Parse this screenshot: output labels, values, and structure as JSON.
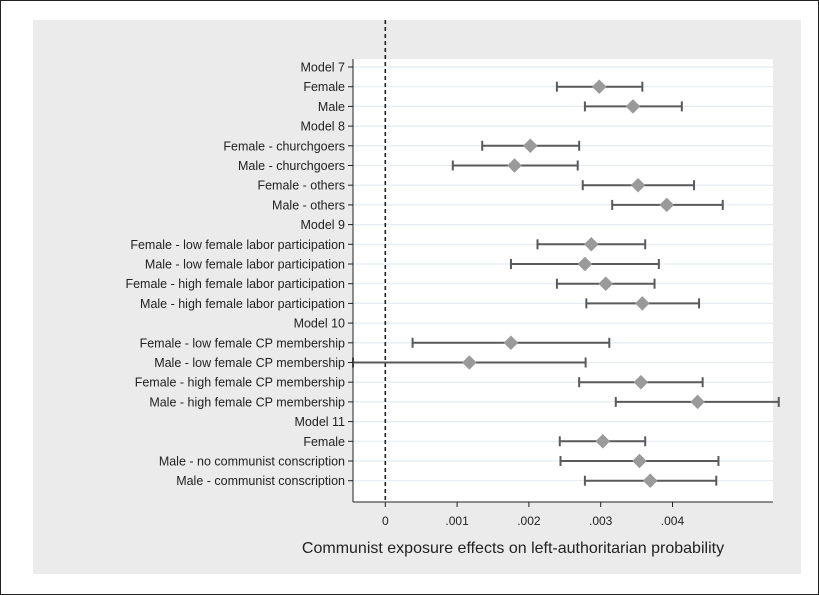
{
  "chart_data": {
    "type": "scatter",
    "subtype": "coefficient-plot-with-confidence-intervals",
    "xlabel": "Communist exposure effects on left-authoritarian probability",
    "xlim": [
      -0.00045,
      0.0054
    ],
    "xticks": [
      {
        "value": 0,
        "label": "0"
      },
      {
        "value": 0.001,
        "label": ".001"
      },
      {
        "value": 0.002,
        "label": ".002"
      },
      {
        "value": 0.003,
        "label": ".003"
      },
      {
        "value": 0.004,
        "label": ".004"
      }
    ],
    "reference_line": {
      "value": 0,
      "style": "dashed"
    },
    "grid": "horizontal",
    "colors": {
      "panel_background": "#ebebeb",
      "plot_background": "#ffffff",
      "marker": "#9a9a9a",
      "ci_line": "#5a5a5a",
      "gridline": "#e4ecf2"
    },
    "rows": [
      {
        "label": "Model 7",
        "header": true
      },
      {
        "label": "Female",
        "estimate": 0.00298,
        "ci": [
          0.00239,
          0.00358
        ]
      },
      {
        "label": "Male",
        "estimate": 0.00345,
        "ci": [
          0.00278,
          0.00413
        ]
      },
      {
        "label": "Model 8",
        "header": true
      },
      {
        "label": "Female - churchgoers",
        "estimate": 0.00202,
        "ci": [
          0.00135,
          0.0027
        ]
      },
      {
        "label": "Male - churchgoers",
        "estimate": 0.0018,
        "ci": [
          0.00094,
          0.00268
        ]
      },
      {
        "label": "Female - others",
        "estimate": 0.00352,
        "ci": [
          0.00275,
          0.0043
        ]
      },
      {
        "label": "Male - others",
        "estimate": 0.00392,
        "ci": [
          0.00316,
          0.0047
        ]
      },
      {
        "label": "Model 9",
        "header": true
      },
      {
        "label": "Female - low female labor participation",
        "estimate": 0.00287,
        "ci": [
          0.00212,
          0.00362
        ]
      },
      {
        "label": "Male - low female labor participation",
        "estimate": 0.00278,
        "ci": [
          0.00175,
          0.00381
        ]
      },
      {
        "label": "Female - high female labor participation",
        "estimate": 0.00307,
        "ci": [
          0.00239,
          0.00375
        ]
      },
      {
        "label": "Male - high female labor participation",
        "estimate": 0.00358,
        "ci": [
          0.0028,
          0.00437
        ]
      },
      {
        "label": "Model 10",
        "header": true
      },
      {
        "label": "Female - low female CP membership",
        "estimate": 0.00175,
        "ci": [
          0.00038,
          0.00312
        ]
      },
      {
        "label": "Male - low female CP membership",
        "estimate": 0.00117,
        "ci": [
          -0.00045,
          0.00279
        ]
      },
      {
        "label": "Female - high female CP membership",
        "estimate": 0.00356,
        "ci": [
          0.0027,
          0.00442
        ]
      },
      {
        "label": "Male - high female CP membership",
        "estimate": 0.00435,
        "ci": [
          0.00321,
          0.00548
        ]
      },
      {
        "label": "Model 11",
        "header": true
      },
      {
        "label": "Female",
        "estimate": 0.00303,
        "ci": [
          0.00243,
          0.00362
        ]
      },
      {
        "label": "Male - no communist conscription",
        "estimate": 0.00354,
        "ci": [
          0.00244,
          0.00464
        ]
      },
      {
        "label": "Male - communist conscription",
        "estimate": 0.00369,
        "ci": [
          0.00278,
          0.00461
        ]
      }
    ]
  }
}
